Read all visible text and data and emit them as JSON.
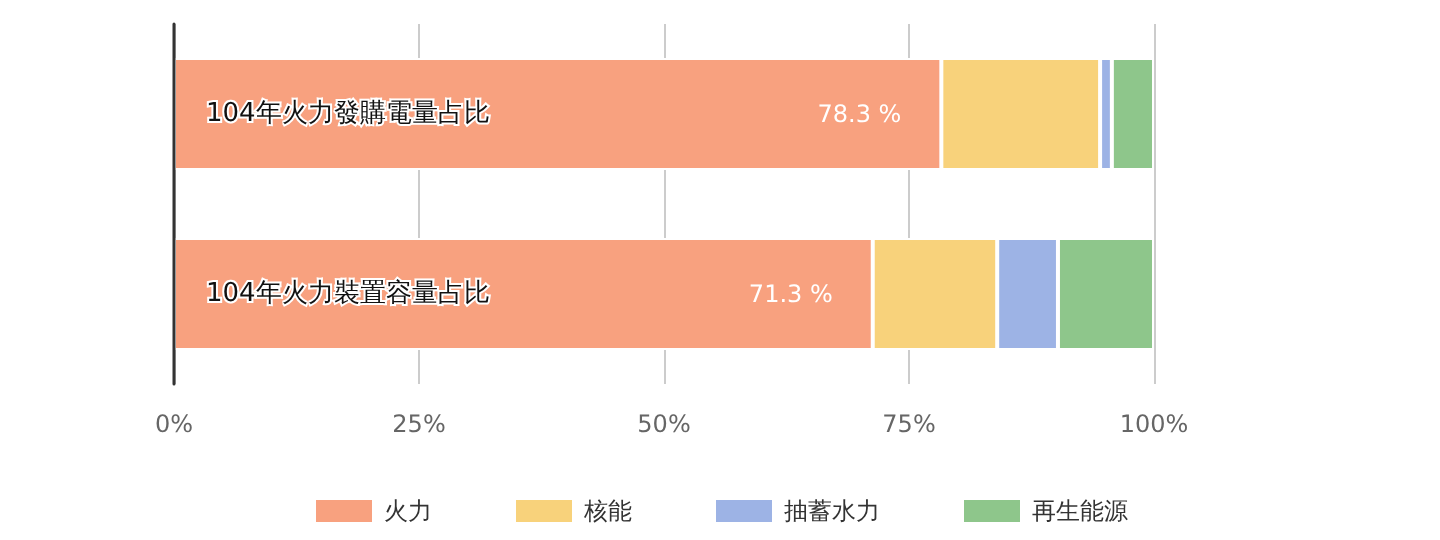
{
  "chart_data": {
    "type": "bar",
    "orientation": "horizontal",
    "stacked": true,
    "categories": [
      "104年火力發購電量占比",
      "104年火力裝置容量占比"
    ],
    "series": [
      {
        "name": "火力",
        "color": "#f8a17f",
        "values": [
          78.3,
          71.3
        ],
        "value_labels": [
          "78.3 %",
          "71.3 %"
        ]
      },
      {
        "name": "核能",
        "color": "#f8d27b",
        "values": [
          16.2,
          12.7
        ]
      },
      {
        "name": "抽蓄水力",
        "color": "#9db3e5",
        "values": [
          1.2,
          6.2
        ]
      },
      {
        "name": "再生能源",
        "color": "#8ec68b",
        "values": [
          4.3,
          9.8
        ]
      }
    ],
    "xlim": [
      0,
      100
    ],
    "xticks": [
      {
        "value": 0,
        "label": "0%"
      },
      {
        "value": 25,
        "label": "25%"
      },
      {
        "value": 50,
        "label": "50%"
      },
      {
        "value": 75,
        "label": "75%"
      },
      {
        "value": 100,
        "label": "100%"
      }
    ],
    "grid": "x",
    "legend": "bottom"
  }
}
